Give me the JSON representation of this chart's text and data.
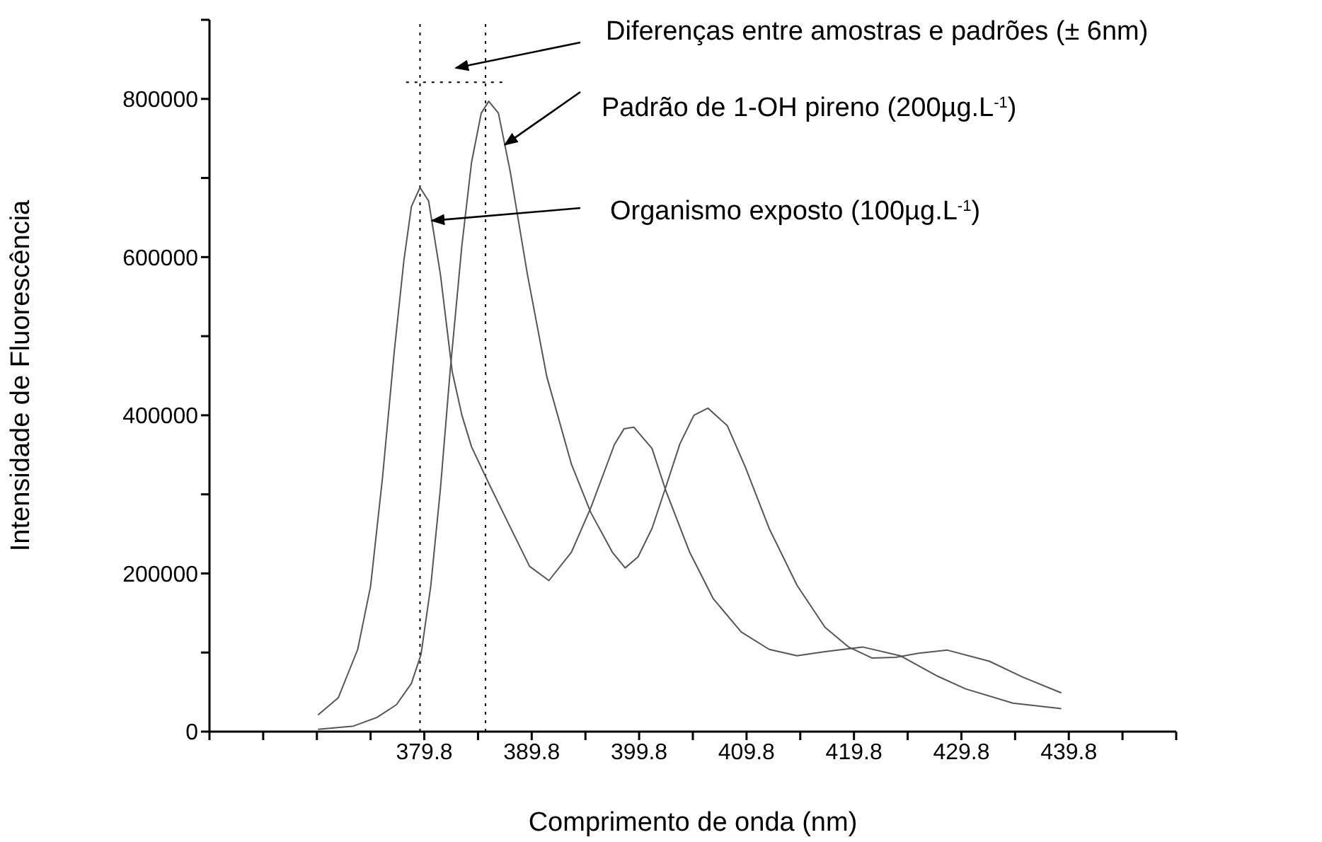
{
  "chart_data": {
    "type": "line",
    "xlabel": "Comprimento de onda (nm)",
    "ylabel": "Intensidade de Fluorescência",
    "xlim": [
      359.8,
      449.8
    ],
    "xticks": [
      {
        "value": 359.8,
        "label": null
      },
      {
        "value": 364.8,
        "label": null
      },
      {
        "value": 369.8,
        "label": null
      },
      {
        "value": 374.8,
        "label": null
      },
      379.8,
      {
        "value": 384.8,
        "label": null
      },
      389.8,
      {
        "value": 394.8,
        "label": null
      },
      399.8,
      {
        "value": 404.8,
        "label": null
      },
      409.8,
      {
        "value": 414.8,
        "label": null
      },
      419.8,
      {
        "value": 424.8,
        "label": null
      },
      429.8,
      {
        "value": 434.8,
        "label": null
      },
      439.8,
      {
        "value": 444.8,
        "label": null
      },
      {
        "value": 449.8,
        "label": null
      }
    ],
    "ylim": [
      0,
      900000
    ],
    "yticks": [
      0,
      {
        "value": 100000,
        "label": null
      },
      200000,
      {
        "value": 300000,
        "label": null
      },
      400000,
      {
        "value": 500000,
        "label": null
      },
      600000,
      {
        "value": 700000,
        "label": null
      },
      800000,
      {
        "value": 900000,
        "label": null
      }
    ],
    "grid": false,
    "legend": false,
    "marker": "none",
    "line_style": "solid",
    "series": [
      {
        "color": "#555555",
        "x": [
          369.9,
          371.8,
          373.6,
          374.8,
          375.9,
          377.0,
          377.9,
          378.6,
          379.4,
          380.2,
          381.3,
          382.4,
          383.3,
          384.2,
          385.8,
          387.6,
          389.6,
          391.4,
          393.5,
          395.3,
          397.5,
          398.4,
          399.3,
          401.0,
          402.3,
          404.5,
          406.7,
          409.3,
          411.9,
          414.5,
          417.1,
          420.6,
          424.1,
          427.6,
          430.2,
          434.6,
          439.1
        ],
        "values": [
          21000,
          43000,
          104000,
          184000,
          320000,
          480000,
          596000,
          664000,
          688000,
          671000,
          578000,
          455000,
          400000,
          360000,
          314000,
          264000,
          209000,
          191000,
          227000,
          283000,
          363000,
          383000,
          385000,
          358000,
          304000,
          227000,
          168000,
          126000,
          104000,
          96000,
          101000,
          107000,
          96000,
          70000,
          54000,
          36000,
          29000
        ]
      },
      {
        "color": "#555555",
        "x": [
          369.9,
          373.2,
          375.4,
          377.2,
          378.6,
          379.5,
          380.4,
          381.3,
          382.2,
          383.3,
          384.2,
          385.1,
          385.8,
          386.7,
          387.8,
          389.4,
          391.2,
          393.5,
          395.3,
          397.3,
          398.5,
          399.7,
          401.0,
          402.3,
          403.6,
          404.9,
          406.2,
          408.0,
          409.7,
          411.9,
          414.5,
          417.1,
          419.3,
          421.5,
          423.7,
          425.8,
          428.5,
          432.4,
          435.5,
          439.1
        ],
        "values": [
          3000,
          7000,
          18000,
          34000,
          61000,
          98000,
          184000,
          307000,
          455000,
          615000,
          720000,
          782000,
          797000,
          782000,
          708000,
          578000,
          449000,
          338000,
          277000,
          227000,
          207000,
          221000,
          257000,
          310000,
          364000,
          400000,
          409000,
          387000,
          334000,
          257000,
          185000,
          132000,
          107000,
          93000,
          94000,
          99000,
          103000,
          89000,
          69000,
          49000
        ]
      },
      {
        "type": "line",
        "color": "#000000",
        "line_style": "dotted",
        "x": [
          378.1,
          387.1
        ],
        "values": [
          821000,
          821000
        ]
      }
    ],
    "ref_lines": [
      {
        "axis": "x",
        "value": 379.4,
        "line_style": "dotted",
        "color": "#000000"
      },
      {
        "axis": "x",
        "value": 385.5,
        "line_style": "dotted",
        "color": "#000000"
      }
    ],
    "annotations": [
      "Diferenças entre amostras e padrões (± 6nm)",
      {
        "text": "Padrão de 1-OH pireno (200µg.L$^{-1}$)",
        "x": 387.3,
        "y": 742000
      },
      {
        "text": "Organismo exposto (100µg.L$^{-1}$)",
        "x": 380.5,
        "y": 646000
      }
    ]
  }
}
